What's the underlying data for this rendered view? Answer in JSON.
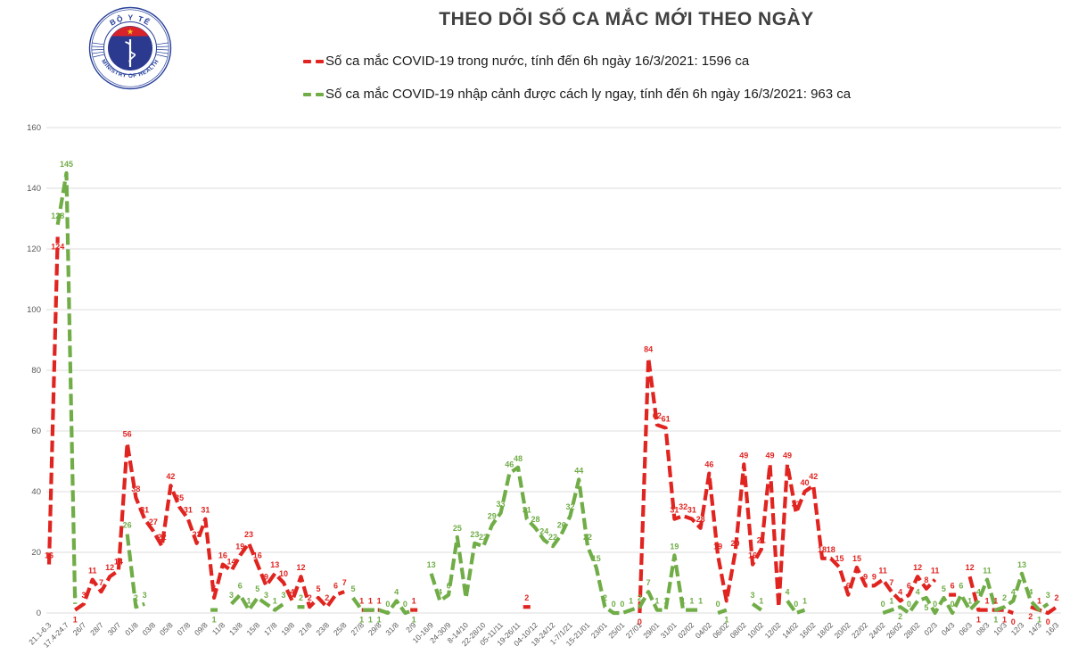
{
  "header": {
    "title": "THEO DÕI SỐ CA MẮC MỚI THEO NGÀY"
  },
  "logo": {
    "name": "ministry-of-health-seal",
    "top_text": "BỘ Y TẾ",
    "bottom_text": "MINISTRY OF HEALTH",
    "ring_color": "#27409a",
    "disc_color": "#2b3a8f",
    "band_color": "#d8232a",
    "star_color": "#f5c518"
  },
  "legend": [
    {
      "label": "Số ca mắc COVID-19 trong nước, tính đến 6h ngày 16/3/2021: 1596 ca",
      "color": "#e02420"
    },
    {
      "label": "Số ca mắc COVID-19 nhập cảnh được cách ly ngay, tính đến 6h ngày 16/3/2021: 963 ca",
      "color": "#70ad47"
    }
  ],
  "chart_data": {
    "type": "line",
    "title": "THEO DÕI SỐ CA MẮC MỚI THEO NGÀY",
    "xlabel": "",
    "ylabel": "",
    "ylim": [
      0,
      160
    ],
    "yticks": [
      0,
      20,
      40,
      60,
      80,
      100,
      120,
      140,
      160
    ],
    "grid": true,
    "grid_color": "#dcdcdc",
    "axis_label_color": "#595959",
    "legend_position": "top-left",
    "line_style": "dashed",
    "categories": [
      "21.1-6.3",
      "",
      "17.4-24.7",
      "",
      "26/7",
      "",
      "28/7",
      "",
      "30/7",
      "",
      "01/8",
      "",
      "03/8",
      "",
      "05/8",
      "",
      "07/8",
      "",
      "09/8",
      "",
      "11/8",
      "",
      "13/8",
      "",
      "15/8",
      "",
      "17/8",
      "",
      "19/8",
      "",
      "21/8",
      "",
      "23/8",
      "",
      "25/8",
      "",
      "27/8",
      "",
      "29/8",
      "",
      "31/8",
      "",
      "2/9",
      "",
      "10-16/9",
      "",
      "24-30/9",
      "",
      "8-14/10",
      "",
      "22-28/10",
      "",
      "05-11/11",
      "",
      "19-26/11",
      "",
      "04-10/12",
      "",
      "18-24/12",
      "",
      "1-7/1/21",
      "",
      "15-21/01",
      "",
      "23/01",
      "",
      "25/01",
      "",
      "27/01",
      "",
      "29/01",
      "",
      "31/01",
      "",
      "02/02",
      "",
      "04/02",
      "",
      "06/02",
      "",
      "08/02",
      "",
      "10/02",
      "",
      "12/02",
      "",
      "14/02",
      "",
      "16/02",
      "",
      "18/02",
      "",
      "20/02",
      "",
      "22/02",
      "",
      "24/02",
      "",
      "26/02",
      "",
      "28/02",
      "",
      "02/3",
      "",
      "04/3",
      "",
      "06/3",
      "",
      "08/3",
      "",
      "10/3",
      "",
      "12/3",
      "",
      "14/3",
      "",
      "16/3"
    ],
    "series": [
      {
        "name": "Số ca mắc COVID-19 trong nước",
        "color": "#e02420",
        "values": [
          16,
          124,
          null,
          1,
          3,
          11,
          7,
          12,
          14,
          56,
          38,
          31,
          27,
          22,
          42,
          35,
          31,
          23,
          31,
          5,
          16,
          14,
          19,
          23,
          16,
          9,
          13,
          10,
          4,
          12,
          2,
          5,
          2,
          6,
          7,
          null,
          1,
          1,
          1,
          null,
          null,
          null,
          1,
          null,
          null,
          null,
          null,
          null,
          null,
          null,
          null,
          null,
          null,
          null,
          null,
          2,
          null,
          null,
          null,
          null,
          null,
          null,
          null,
          null,
          null,
          null,
          null,
          null,
          0,
          84,
          62,
          61,
          31,
          32,
          31,
          28,
          46,
          19,
          4,
          20,
          49,
          16,
          21,
          49,
          2,
          49,
          33,
          40,
          42,
          18,
          18,
          15,
          6,
          15,
          9,
          9,
          11,
          7,
          4,
          6,
          12,
          8,
          11,
          null,
          6,
          null,
          12,
          1,
          1,
          1,
          1,
          0,
          null,
          2,
          1,
          0,
          2
        ]
      },
      {
        "name": "Số ca mắc COVID-19 nhập cảnh được cách ly ngay",
        "color": "#70ad47",
        "values": [
          null,
          128,
          145,
          3,
          null,
          null,
          null,
          null,
          null,
          26,
          2,
          3,
          null,
          null,
          null,
          null,
          null,
          null,
          null,
          1,
          null,
          3,
          6,
          1,
          5,
          3,
          1,
          3,
          null,
          2,
          null,
          null,
          null,
          null,
          null,
          5,
          1,
          1,
          1,
          0,
          4,
          0,
          1,
          null,
          13,
          4,
          6,
          25,
          5,
          23,
          22,
          29,
          33,
          46,
          48,
          31,
          28,
          24,
          22,
          26,
          32,
          44,
          22,
          15,
          2,
          0,
          0,
          1,
          2,
          7,
          1,
          1,
          19,
          1,
          1,
          1,
          null,
          0,
          1,
          null,
          null,
          3,
          1,
          null,
          null,
          4,
          0,
          1,
          null,
          null,
          null,
          null,
          null,
          null,
          null,
          null,
          0,
          1,
          2,
          0,
          4,
          5,
          0,
          5,
          0,
          6,
          1,
          4,
          11,
          1,
          2,
          4,
          13,
          4,
          1,
          3,
          null
        ]
      }
    ]
  }
}
